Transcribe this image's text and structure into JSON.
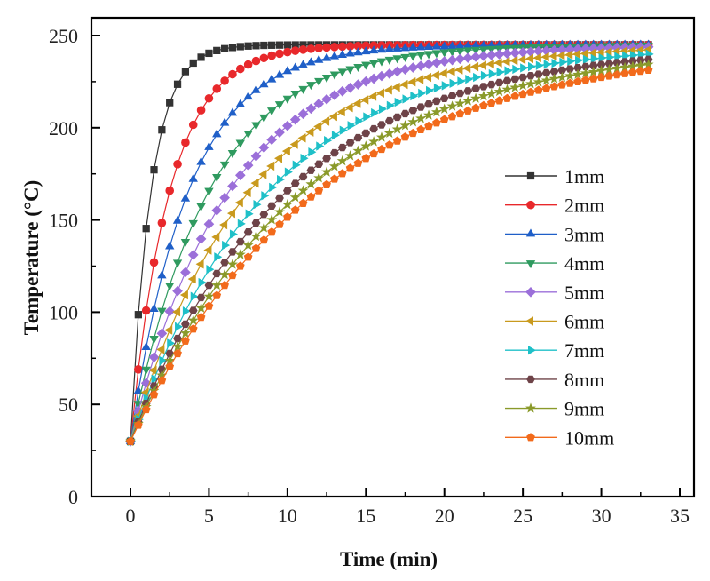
{
  "chart_data": {
    "type": "line",
    "title": "",
    "xlabel": "Time (min)",
    "ylabel": "Temperature (°C)",
    "xlim": [
      -3,
      35
    ],
    "ylim": [
      0,
      250
    ],
    "xticks": [
      0,
      5,
      10,
      15,
      20,
      25,
      30,
      35
    ],
    "yticks": [
      0,
      50,
      100,
      150,
      200,
      250
    ],
    "xtick_labels": [
      "0",
      "5",
      "10",
      "15",
      "20",
      "25",
      "30",
      "35"
    ],
    "ytick_labels": [
      "0",
      "50",
      "100",
      "150",
      "200",
      "250"
    ],
    "grid": false,
    "legend_position": "center-right",
    "x_start": 0,
    "x_step": 0.5,
    "point_count": 67,
    "model": "T(t) = 245 - 215*exp(-t/tau)",
    "series": [
      {
        "name": "1mm",
        "color": "#333333",
        "marker": "square",
        "tau": 1.3
      },
      {
        "name": "2mm",
        "color": "#e8282b",
        "marker": "circle",
        "tau": 2.5
      },
      {
        "name": "3mm",
        "color": "#1f5fc8",
        "marker": "triangle-up",
        "tau": 3.7
      },
      {
        "name": "4mm",
        "color": "#2f9a5f",
        "marker": "triangle-down",
        "tau": 5.0
      },
      {
        "name": "5mm",
        "color": "#9b6fd9",
        "marker": "diamond",
        "tau": 6.3
      },
      {
        "name": "6mm",
        "color": "#c99a1e",
        "marker": "triangle-left",
        "tau": 7.6
      },
      {
        "name": "7mm",
        "color": "#1fc0c8",
        "marker": "triangle-right",
        "tau": 8.8
      },
      {
        "name": "8mm",
        "color": "#6e4348",
        "marker": "hexagon",
        "tau": 10.0
      },
      {
        "name": "9mm",
        "color": "#8a9a2a",
        "marker": "star",
        "tau": 11.0
      },
      {
        "name": "10mm",
        "color": "#f26a1b",
        "marker": "pentagon",
        "tau": 12.0
      }
    ]
  }
}
